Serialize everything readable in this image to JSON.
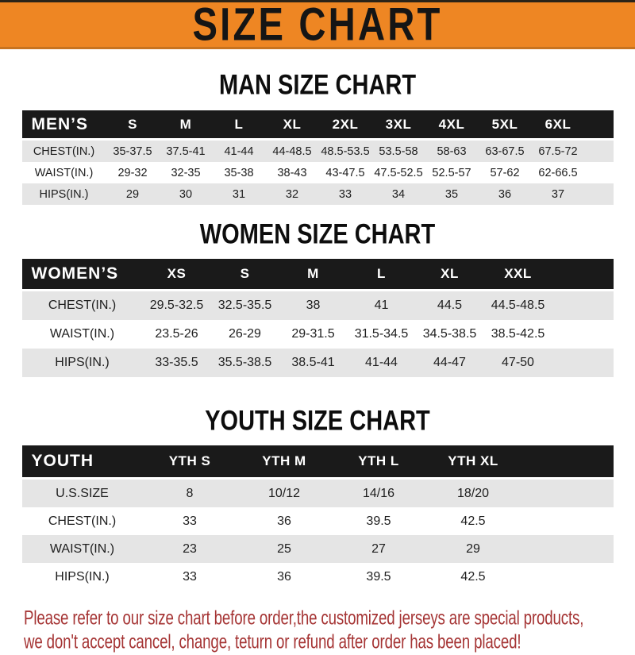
{
  "colors": {
    "orange": "#ee8623",
    "bar": "#1a1a1a",
    "stripe": "#e5e5e5",
    "red": "#a53434"
  },
  "banner": {
    "title": "SIZE CHART"
  },
  "sections": [
    {
      "id": "men",
      "title": "MAN SIZE CHART",
      "header_label": "MEN’S",
      "columns": [
        "S",
        "M",
        "L",
        "XL",
        "2XL",
        "3XL",
        "4XL",
        "5XL",
        "6XL"
      ],
      "rows": [
        {
          "label": "CHEST(IN.)",
          "values": [
            "35-37.5",
            "37.5-41",
            "41-44",
            "44-48.5",
            "48.5-53.5",
            "53.5-58",
            "58-63",
            "63-67.5",
            "67.5-72"
          ]
        },
        {
          "label": "WAIST(IN.)",
          "values": [
            "29-32",
            "32-35",
            "35-38",
            "38-43",
            "43-47.5",
            "47.5-52.5",
            "52.5-57",
            "57-62",
            "62-66.5"
          ]
        },
        {
          "label": "HIPS(IN.)",
          "values": [
            "29",
            "30",
            "31",
            "32",
            "33",
            "34",
            "35",
            "36",
            "37"
          ]
        }
      ]
    },
    {
      "id": "women",
      "title": "WOMEN SIZE CHART",
      "header_label": "WOMEN’S",
      "columns": [
        "XS",
        "S",
        "M",
        "L",
        "XL",
        "XXL"
      ],
      "rows": [
        {
          "label": "CHEST(IN.)",
          "values": [
            "29.5-32.5",
            "32.5-35.5",
            "38",
            "41",
            "44.5",
            "44.5-48.5"
          ]
        },
        {
          "label": "WAIST(IN.)",
          "values": [
            "23.5-26",
            "26-29",
            "29-31.5",
            "31.5-34.5",
            "34.5-38.5",
            "38.5-42.5"
          ]
        },
        {
          "label": "HIPS(IN.)",
          "values": [
            "33-35.5",
            "35.5-38.5",
            "38.5-41",
            "41-44",
            "44-47",
            "47-50"
          ]
        }
      ]
    },
    {
      "id": "youth",
      "title": "YOUTH SIZE CHART",
      "header_label": "YOUTH",
      "columns": [
        "YTH S",
        "YTH M",
        "YTH L",
        "YTH XL"
      ],
      "rows": [
        {
          "label": "U.S.SIZE",
          "values": [
            "8",
            "10/12",
            "14/16",
            "18/20"
          ]
        },
        {
          "label": "CHEST(IN.)",
          "values": [
            "33",
            "36",
            "39.5",
            "42.5"
          ]
        },
        {
          "label": "WAIST(IN.)",
          "values": [
            "23",
            "25",
            "27",
            "29"
          ]
        },
        {
          "label": "HIPS(IN.)",
          "values": [
            "33",
            "36",
            "39.5",
            "42.5"
          ]
        }
      ]
    }
  ],
  "footer": {
    "line1": "Please refer to our size chart before order,the customized jerseys are special products,",
    "line2": "we don't accept cancel, change, teturn or refund after order has been placed!"
  }
}
